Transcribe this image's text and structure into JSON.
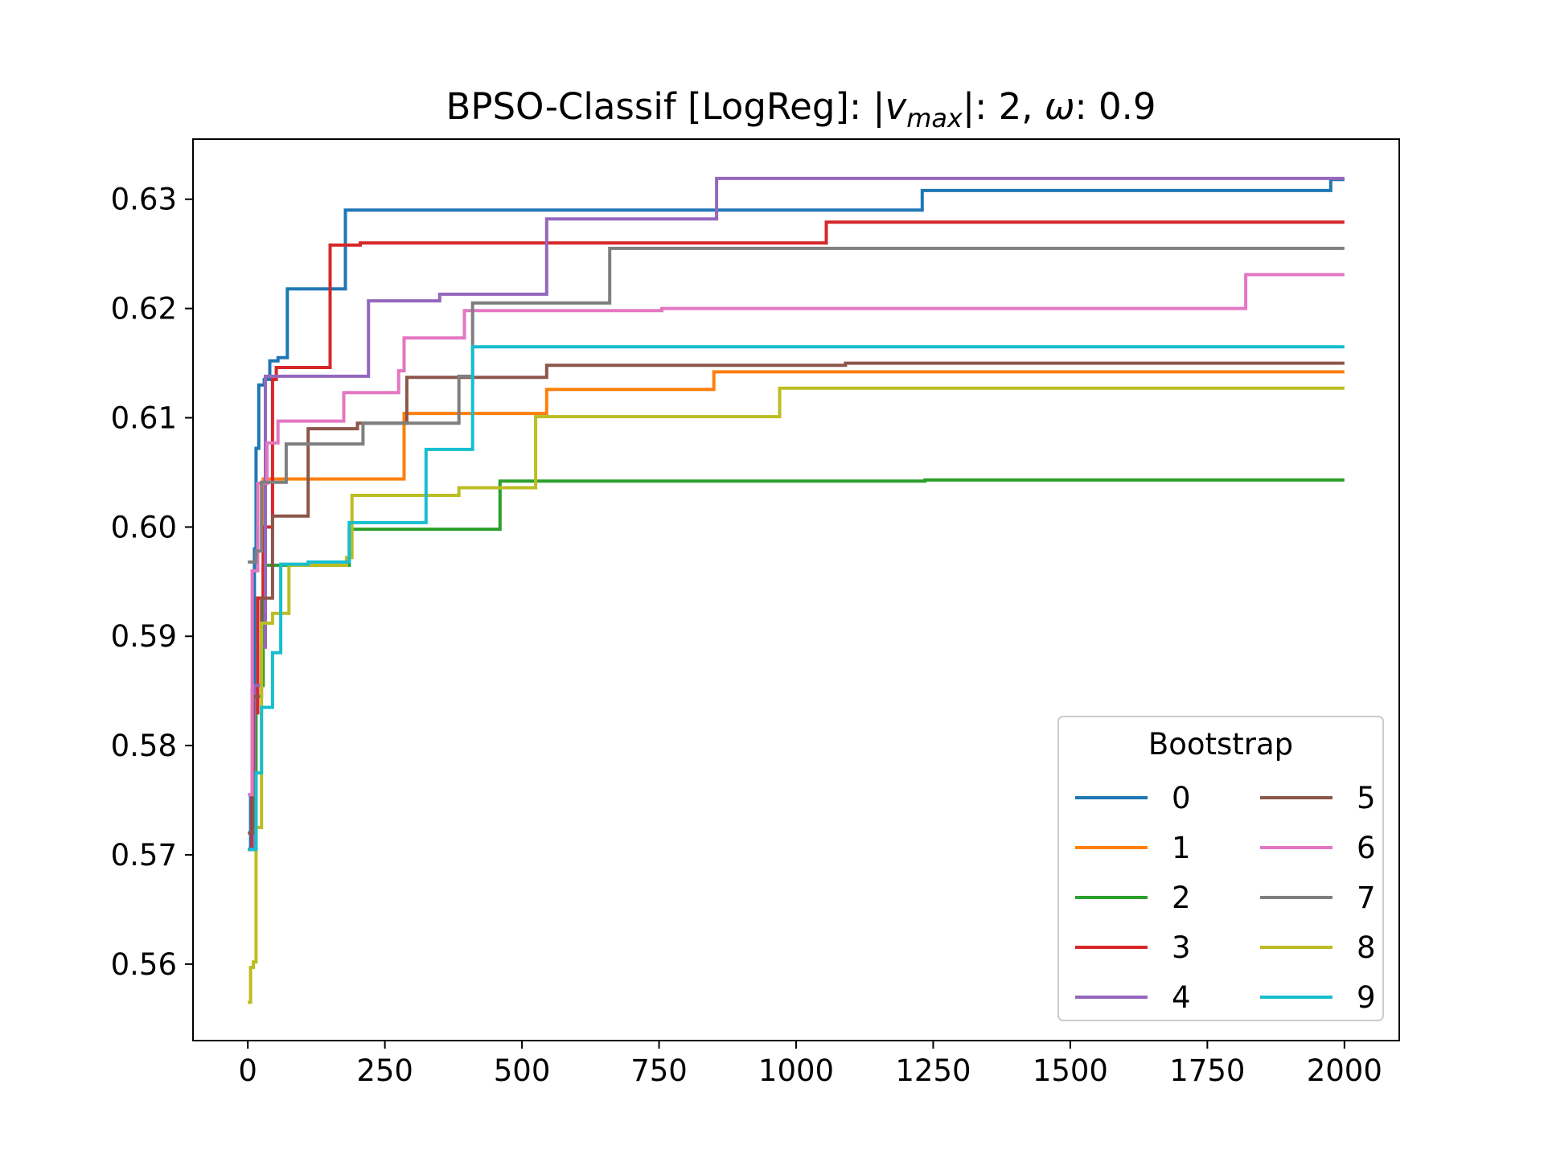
{
  "chart_data": {
    "type": "line",
    "title": {
      "prefix": "BPSO-Classif [LogReg]: |",
      "v": "v",
      "sub": "max",
      "mid": "|: 2, ",
      "omega": "ω",
      "suffix": ": 0.9"
    },
    "xlabel": "",
    "ylabel": "",
    "xlim": [
      -100,
      2100
    ],
    "ylim": [
      0.553,
      0.6355
    ],
    "xticks": [
      0,
      250,
      500,
      750,
      1000,
      1250,
      1500,
      1750,
      2000
    ],
    "xtick_labels": [
      "0",
      "250",
      "500",
      "750",
      "1000",
      "1250",
      "1500",
      "1750",
      "2000"
    ],
    "yticks": [
      0.56,
      0.57,
      0.58,
      0.59,
      0.6,
      0.61,
      0.62,
      0.63
    ],
    "ytick_labels": [
      "0.56",
      "0.57",
      "0.58",
      "0.59",
      "0.60",
      "0.61",
      "0.62",
      "0.63"
    ],
    "grid": false,
    "legend": {
      "title": "Bootstrap",
      "position": "lower-right",
      "columns": 2
    },
    "series": [
      {
        "name": "0",
        "color": "#1f77b4",
        "points": [
          [
            0,
            0.5705
          ],
          [
            5,
            0.5755
          ],
          [
            8,
            0.585
          ],
          [
            12,
            0.598
          ],
          [
            15,
            0.6072
          ],
          [
            20,
            0.613
          ],
          [
            30,
            0.6135
          ],
          [
            40,
            0.6152
          ],
          [
            55,
            0.6155
          ],
          [
            72,
            0.6218
          ],
          [
            178,
            0.629
          ],
          [
            1230,
            0.6308
          ],
          [
            1975,
            0.6318
          ],
          [
            2000,
            0.6318
          ]
        ]
      },
      {
        "name": "1",
        "color": "#ff7f0e",
        "points": [
          [
            0,
            0.5705
          ],
          [
            10,
            0.5855
          ],
          [
            18,
            0.5935
          ],
          [
            28,
            0.6044
          ],
          [
            285,
            0.6104
          ],
          [
            545,
            0.6126
          ],
          [
            850,
            0.6142
          ],
          [
            2000,
            0.6142
          ]
        ]
      },
      {
        "name": "2",
        "color": "#2ca02c",
        "points": [
          [
            0,
            0.5705
          ],
          [
            15,
            0.5855
          ],
          [
            28,
            0.5965
          ],
          [
            185,
            0.5998
          ],
          [
            460,
            0.6042
          ],
          [
            1235,
            0.6043
          ],
          [
            2000,
            0.6043
          ]
        ]
      },
      {
        "name": "3",
        "color": "#d62728",
        "points": [
          [
            0,
            0.5705
          ],
          [
            8,
            0.583
          ],
          [
            18,
            0.5935
          ],
          [
            28,
            0.6
          ],
          [
            45,
            0.6135
          ],
          [
            52,
            0.6146
          ],
          [
            150,
            0.6258
          ],
          [
            205,
            0.626
          ],
          [
            1055,
            0.6279
          ],
          [
            2000,
            0.6279
          ]
        ]
      },
      {
        "name": "4",
        "color": "#9467bd",
        "points": [
          [
            0,
            0.5705
          ],
          [
            12,
            0.5855
          ],
          [
            25,
            0.589
          ],
          [
            32,
            0.6138
          ],
          [
            220,
            0.6207
          ],
          [
            350,
            0.6213
          ],
          [
            545,
            0.6282
          ],
          [
            855,
            0.6319
          ],
          [
            2000,
            0.6319
          ]
        ]
      },
      {
        "name": "5",
        "color": "#8c564b",
        "points": [
          [
            0,
            0.572
          ],
          [
            10,
            0.5845
          ],
          [
            25,
            0.5935
          ],
          [
            45,
            0.601
          ],
          [
            110,
            0.609
          ],
          [
            200,
            0.6095
          ],
          [
            290,
            0.6137
          ],
          [
            545,
            0.6148
          ],
          [
            1090,
            0.615
          ],
          [
            2000,
            0.615
          ]
        ]
      },
      {
        "name": "6",
        "color": "#e377c2",
        "points": [
          [
            0,
            0.5755
          ],
          [
            8,
            0.596
          ],
          [
            18,
            0.604
          ],
          [
            35,
            0.6077
          ],
          [
            55,
            0.6097
          ],
          [
            175,
            0.6123
          ],
          [
            275,
            0.6143
          ],
          [
            285,
            0.6173
          ],
          [
            395,
            0.6198
          ],
          [
            755,
            0.62
          ],
          [
            1820,
            0.6231
          ],
          [
            2000,
            0.6231
          ]
        ]
      },
      {
        "name": "7",
        "color": "#7f7f7f",
        "points": [
          [
            0,
            0.5968
          ],
          [
            15,
            0.5978
          ],
          [
            25,
            0.6041
          ],
          [
            70,
            0.6076
          ],
          [
            210,
            0.6095
          ],
          [
            385,
            0.6138
          ],
          [
            410,
            0.6205
          ],
          [
            660,
            0.6255
          ],
          [
            2000,
            0.6255
          ]
        ]
      },
      {
        "name": "8",
        "color": "#bcbd22",
        "points": [
          [
            0,
            0.5565
          ],
          [
            5,
            0.5597
          ],
          [
            10,
            0.5602
          ],
          [
            15,
            0.5725
          ],
          [
            25,
            0.5912
          ],
          [
            45,
            0.5921
          ],
          [
            75,
            0.5965
          ],
          [
            180,
            0.5972
          ],
          [
            190,
            0.6029
          ],
          [
            385,
            0.6036
          ],
          [
            525,
            0.6101
          ],
          [
            970,
            0.6127
          ],
          [
            2000,
            0.6127
          ]
        ]
      },
      {
        "name": "9",
        "color": "#17becf",
        "points": [
          [
            0,
            0.5705
          ],
          [
            15,
            0.5775
          ],
          [
            25,
            0.5835
          ],
          [
            45,
            0.5885
          ],
          [
            60,
            0.5966
          ],
          [
            110,
            0.5968
          ],
          [
            185,
            0.6004
          ],
          [
            325,
            0.6071
          ],
          [
            410,
            0.6165
          ],
          [
            2000,
            0.6165
          ]
        ]
      }
    ]
  }
}
